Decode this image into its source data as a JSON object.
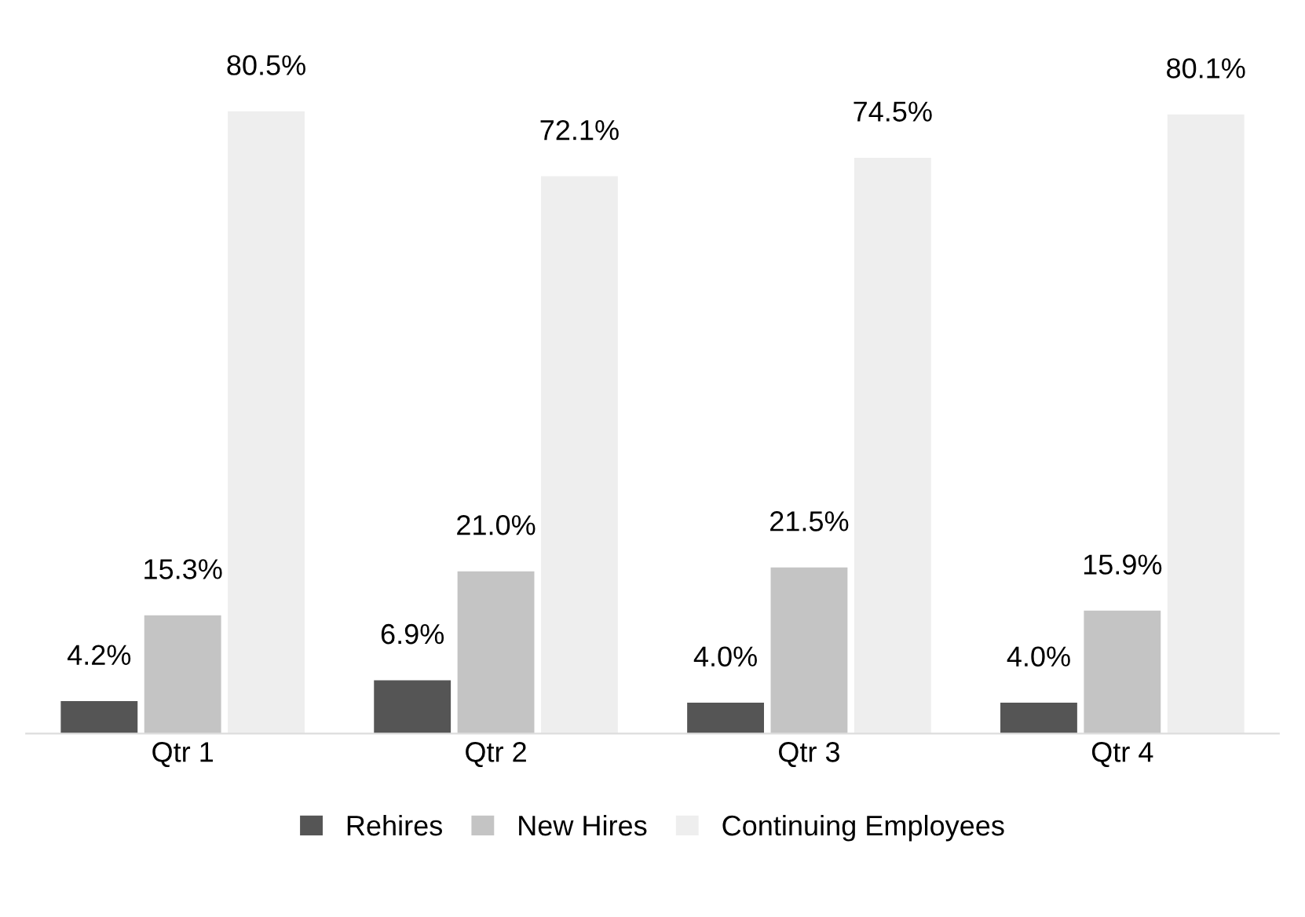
{
  "chart_data": {
    "type": "bar",
    "categories": [
      "Qtr 1",
      "Qtr 2",
      "Qtr 3",
      "Qtr 4"
    ],
    "series": [
      {
        "name": "Rehires",
        "color": "#555555",
        "values": [
          4.2,
          6.9,
          4.0,
          4.0
        ],
        "value_labels": [
          "4.2%",
          "6.9%",
          "4.0%",
          "4.0%"
        ]
      },
      {
        "name": "New Hires",
        "color": "#c4c4c4",
        "values": [
          15.3,
          21.0,
          21.5,
          15.9
        ],
        "value_labels": [
          "15.3%",
          "21.0%",
          "21.5%",
          "15.9%"
        ]
      },
      {
        "name": "Continuing Employees",
        "color": "#eeeeee",
        "values": [
          80.5,
          72.1,
          74.5,
          80.1
        ],
        "value_labels": [
          "80.5%",
          "72.1%",
          "74.5%",
          "80.1%"
        ]
      }
    ],
    "legend": "bottom",
    "tick_labels": "x",
    "grid": false
  }
}
